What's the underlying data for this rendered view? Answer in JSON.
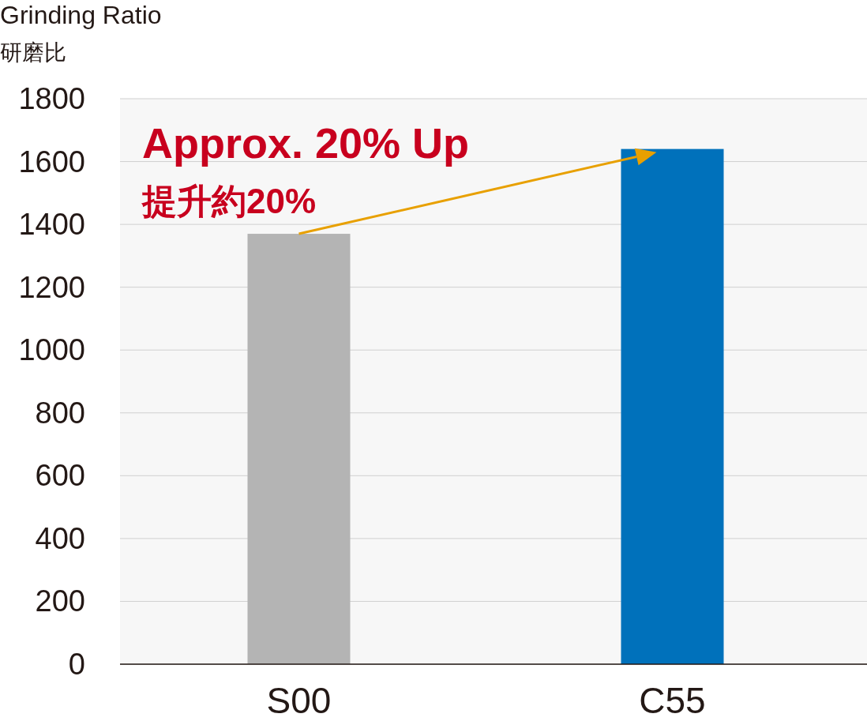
{
  "chart_data": {
    "type": "bar",
    "ylabel": "Grinding Ratio\n研磨比",
    "categories": [
      "S00",
      "C55"
    ],
    "values": [
      1370,
      1640
    ],
    "colors": [
      "#b4b4b4",
      "#0071bb"
    ],
    "ylim": [
      0,
      1800
    ],
    "yticks": [
      0,
      200,
      400,
      600,
      800,
      1000,
      1200,
      1400,
      1600,
      1800
    ],
    "grid": "y",
    "annotations": [
      "Approx. 20% Up",
      "提升約20%"
    ]
  }
}
